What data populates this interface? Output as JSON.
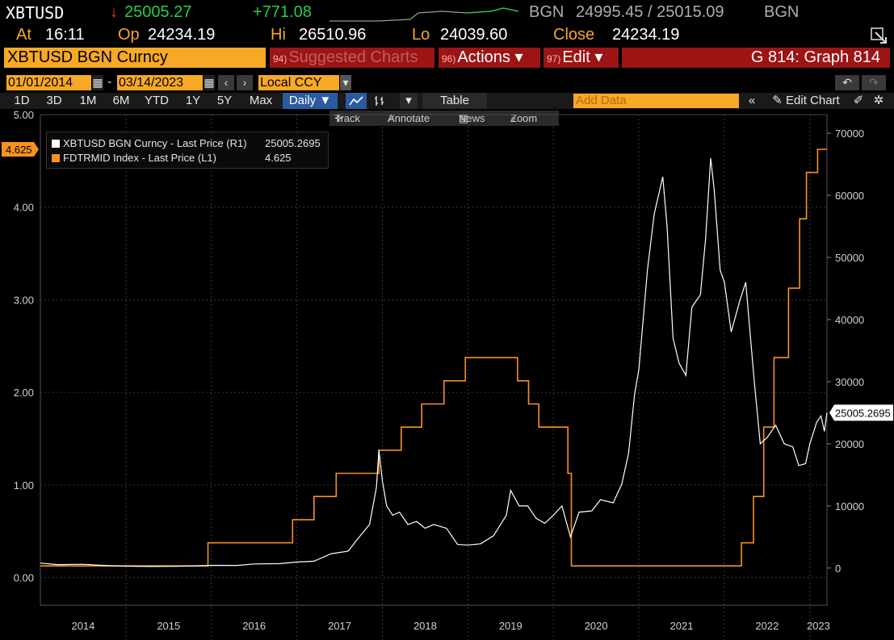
{
  "header": {
    "ticker": "XBTUSD",
    "arrow": "↓",
    "last": "25005.27",
    "change": "+771.08",
    "source": "BGN",
    "bid_ask": "24995.45 / 25015.09",
    "source2": "BGN",
    "at_label": "At",
    "time": "16:11",
    "open_label": "Op",
    "open": "24234.19",
    "high_label": "Hi",
    "high": "26510.96",
    "low_label": "Lo",
    "low": "24039.60",
    "close_label": "Close",
    "close": "24234.19"
  },
  "menu": {
    "security": "XBTUSD BGN Curncy",
    "suggested_num": "94)",
    "suggested": "Suggested Charts",
    "actions_num": "96)",
    "actions": "Actions ▾",
    "edit_num": "97)",
    "edit": "Edit ▾",
    "graph": "G 814: Graph 814"
  },
  "dates": {
    "start": "01/01/2014",
    "dash": "-",
    "end": "03/14/2023",
    "currency": "Local CCY"
  },
  "toolbar": {
    "periods": [
      "1D",
      "3D",
      "1M",
      "6M",
      "YTD",
      "1Y",
      "5Y",
      "Max"
    ],
    "frequency": "Daily ▼",
    "table": "Table",
    "add_data_placeholder": "Add Data",
    "edit_chart": "Edit Chart"
  },
  "subtoolbar": {
    "track": "Track",
    "annotate": "Annotate",
    "news": "News",
    "zoom": "Zoom"
  },
  "legend": {
    "row1_name": "XBTUSD BGN Curncy - Last Price (R1)",
    "row1_value": "25005.2695",
    "row2_name": "FDTRMID Index - Last Price (L1)",
    "row2_value": "4.625"
  },
  "colors": {
    "amber": "#f7a825",
    "white_series": "#ffffff",
    "orange_series": "#f7931e",
    "background": "#000000"
  },
  "chart_data": {
    "type": "line",
    "title": "",
    "x_labels": [
      "2014",
      "2015",
      "2016",
      "2017",
      "2018",
      "2019",
      "2020",
      "2021",
      "2022",
      "2023"
    ],
    "x_range": [
      2014.0,
      2023.2
    ],
    "left_axis": {
      "ticks": [
        "5.00",
        "4.00",
        "3.00",
        "2.00",
        "1.00",
        "0.00"
      ],
      "ylim": [
        -0.3,
        5.0
      ],
      "last_label": "4.625"
    },
    "right_axis": {
      "ticks": [
        "70000",
        "60000",
        "50000",
        "40000",
        "30000",
        "20000",
        "10000",
        "0"
      ],
      "ylim": [
        -6000,
        73000
      ],
      "last_label": "25005.2695"
    },
    "series": [
      {
        "name": "FDTRMID Index - Last Price (L1)",
        "axis": "left",
        "color": "#f7931e",
        "step": true,
        "points": [
          [
            2014.0,
            0.125
          ],
          [
            2015.96,
            0.375
          ],
          [
            2016.95,
            0.625
          ],
          [
            2017.2,
            0.875
          ],
          [
            2017.46,
            1.125
          ],
          [
            2017.96,
            1.375
          ],
          [
            2018.22,
            1.625
          ],
          [
            2018.46,
            1.875
          ],
          [
            2018.72,
            2.125
          ],
          [
            2018.97,
            2.375
          ],
          [
            2019.58,
            2.125
          ],
          [
            2019.71,
            1.875
          ],
          [
            2019.83,
            1.625
          ],
          [
            2020.17,
            1.125
          ],
          [
            2020.21,
            0.125
          ],
          [
            2022.2,
            0.375
          ],
          [
            2022.34,
            0.875
          ],
          [
            2022.46,
            1.625
          ],
          [
            2022.58,
            2.375
          ],
          [
            2022.75,
            3.125
          ],
          [
            2022.88,
            3.875
          ],
          [
            2022.96,
            4.375
          ],
          [
            2023.09,
            4.625
          ],
          [
            2023.2,
            4.625
          ]
        ]
      },
      {
        "name": "XBTUSD BGN Curncy - Last Price (R1)",
        "axis": "right",
        "color": "#ffffff",
        "step": false,
        "points": [
          [
            2014.0,
            800
          ],
          [
            2014.2,
            550
          ],
          [
            2014.5,
            600
          ],
          [
            2014.8,
            380
          ],
          [
            2015.0,
            300
          ],
          [
            2015.3,
            250
          ],
          [
            2015.6,
            270
          ],
          [
            2015.9,
            380
          ],
          [
            2016.0,
            430
          ],
          [
            2016.3,
            420
          ],
          [
            2016.5,
            650
          ],
          [
            2016.8,
            700
          ],
          [
            2017.0,
            970
          ],
          [
            2017.2,
            1100
          ],
          [
            2017.4,
            2300
          ],
          [
            2017.6,
            2700
          ],
          [
            2017.7,
            4500
          ],
          [
            2017.85,
            7000
          ],
          [
            2017.93,
            13000
          ],
          [
            2017.96,
            19000
          ],
          [
            2018.0,
            14000
          ],
          [
            2018.05,
            10000
          ],
          [
            2018.12,
            8500
          ],
          [
            2018.2,
            9000
          ],
          [
            2018.3,
            7000
          ],
          [
            2018.4,
            7500
          ],
          [
            2018.5,
            6400
          ],
          [
            2018.6,
            7000
          ],
          [
            2018.75,
            6400
          ],
          [
            2018.88,
            3800
          ],
          [
            2019.0,
            3700
          ],
          [
            2019.15,
            3900
          ],
          [
            2019.3,
            5200
          ],
          [
            2019.45,
            8500
          ],
          [
            2019.5,
            12500
          ],
          [
            2019.6,
            10000
          ],
          [
            2019.7,
            10000
          ],
          [
            2019.8,
            8000
          ],
          [
            2019.9,
            7200
          ],
          [
            2020.0,
            8500
          ],
          [
            2020.1,
            10000
          ],
          [
            2020.2,
            5000
          ],
          [
            2020.3,
            9000
          ],
          [
            2020.45,
            9200
          ],
          [
            2020.55,
            11000
          ],
          [
            2020.7,
            10500
          ],
          [
            2020.8,
            13500
          ],
          [
            2020.88,
            18500
          ],
          [
            2020.95,
            28000
          ],
          [
            2021.0,
            32000
          ],
          [
            2021.1,
            48000
          ],
          [
            2021.18,
            57000
          ],
          [
            2021.28,
            63000
          ],
          [
            2021.33,
            55000
          ],
          [
            2021.4,
            37000
          ],
          [
            2021.47,
            33000
          ],
          [
            2021.55,
            31000
          ],
          [
            2021.62,
            42000
          ],
          [
            2021.72,
            44000
          ],
          [
            2021.78,
            53000
          ],
          [
            2021.84,
            66000
          ],
          [
            2021.88,
            61000
          ],
          [
            2021.95,
            48000
          ],
          [
            2022.0,
            46000
          ],
          [
            2022.08,
            38000
          ],
          [
            2022.18,
            43000
          ],
          [
            2022.25,
            46000
          ],
          [
            2022.35,
            30000
          ],
          [
            2022.42,
            20000
          ],
          [
            2022.5,
            21000
          ],
          [
            2022.6,
            23000
          ],
          [
            2022.7,
            20000
          ],
          [
            2022.8,
            19500
          ],
          [
            2022.87,
            16500
          ],
          [
            2022.95,
            16800
          ],
          [
            2023.0,
            20000
          ],
          [
            2023.08,
            23500
          ],
          [
            2023.13,
            24500
          ],
          [
            2023.17,
            22000
          ],
          [
            2023.2,
            25005
          ]
        ]
      }
    ],
    "grid": true
  }
}
